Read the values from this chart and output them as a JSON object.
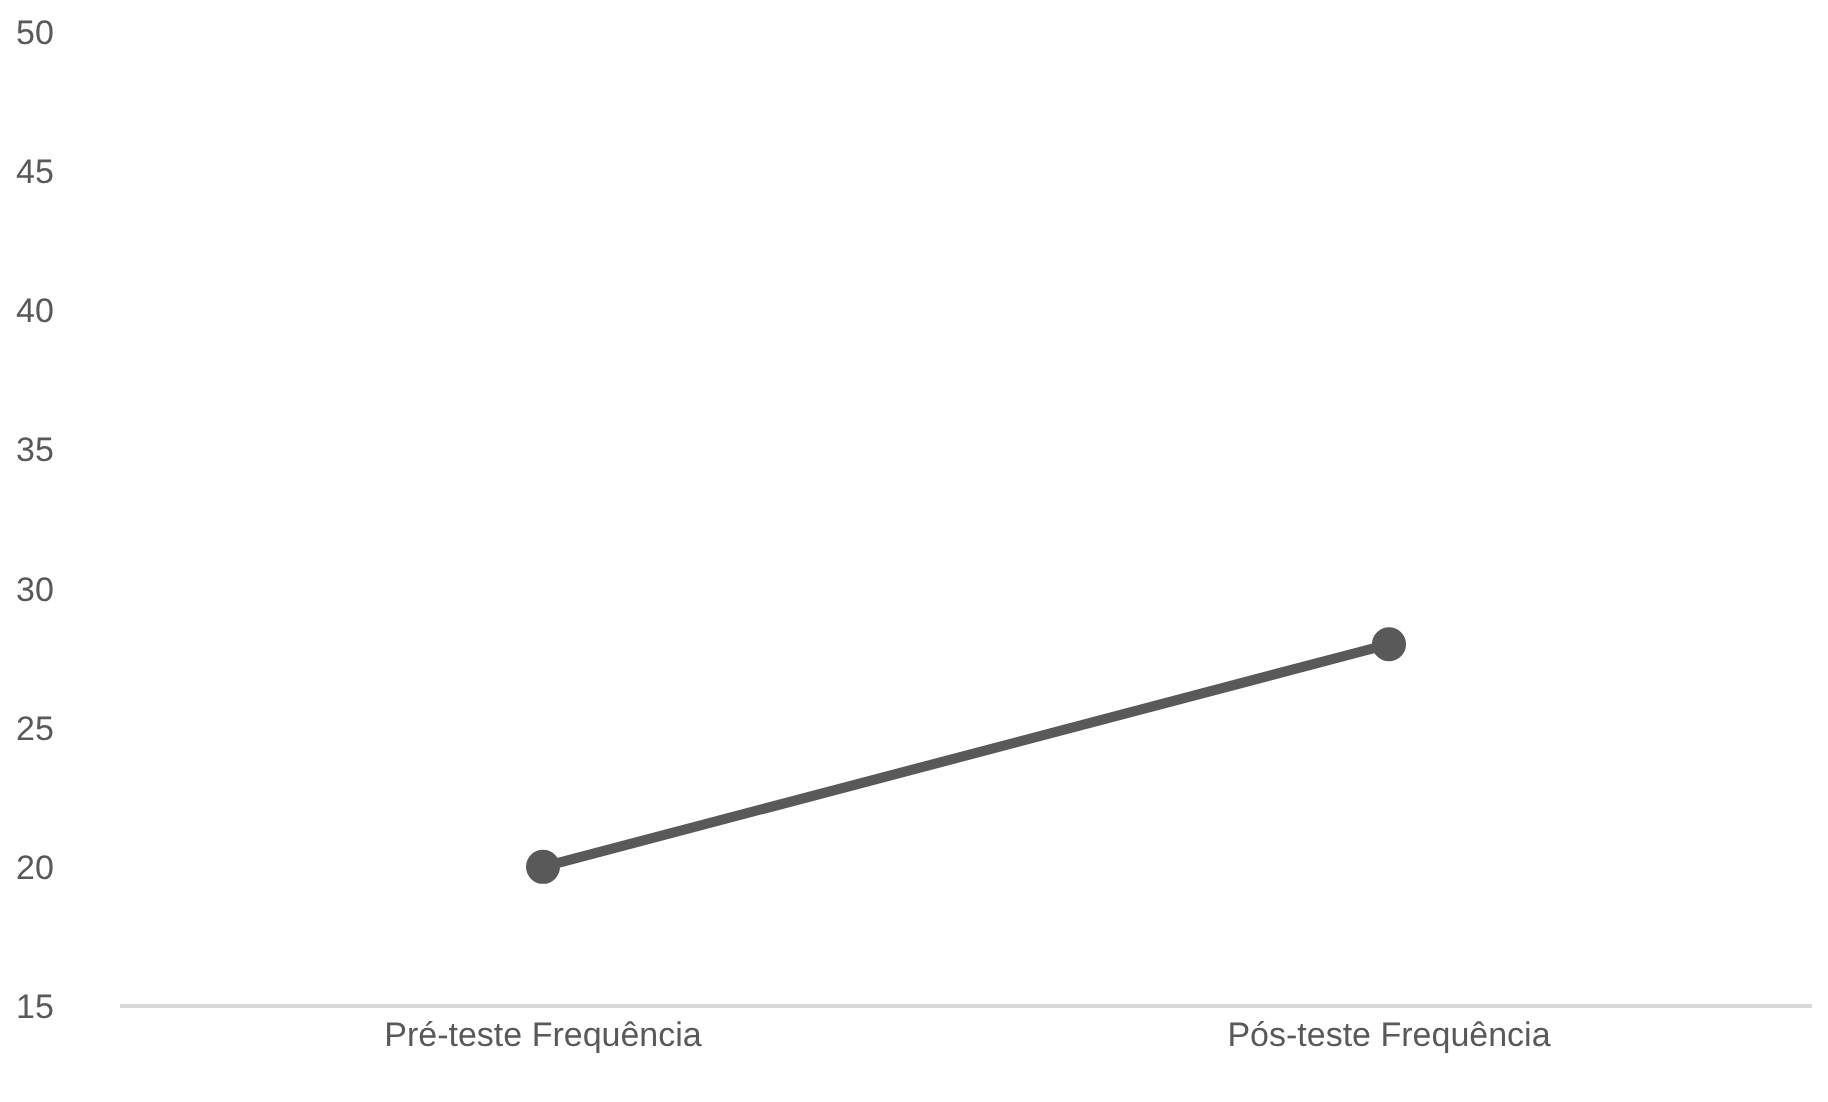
{
  "chart_data": {
    "type": "line",
    "categories": [
      "Pré-teste Frequência",
      "Pós-teste Frequência"
    ],
    "series": [
      {
        "color": "#595959",
        "values": [
          20,
          28
        ]
      }
    ],
    "ylim": [
      15,
      50
    ],
    "yticks": [
      15,
      20,
      25,
      30,
      35,
      40,
      45,
      50
    ],
    "grid": false,
    "legend": false,
    "marker": "circle",
    "line_style": "solid"
  }
}
